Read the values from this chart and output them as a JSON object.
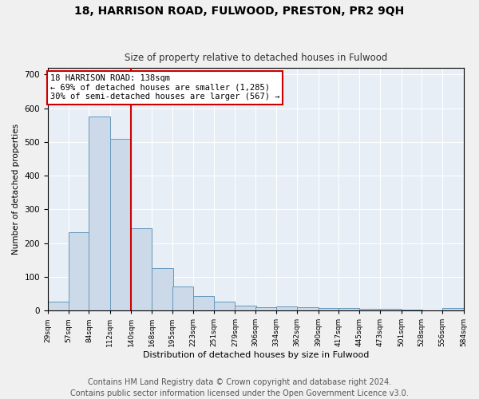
{
  "title": "18, HARRISON ROAD, FULWOOD, PRESTON, PR2 9QH",
  "subtitle": "Size of property relative to detached houses in Fulwood",
  "xlabel": "Distribution of detached houses by size in Fulwood",
  "ylabel": "Number of detached properties",
  "bar_color": "#ccd9e8",
  "bar_edge_color": "#6699bb",
  "background_color": "#e8eef5",
  "grid_color": "#ffffff",
  "vline_x": 140,
  "vline_color": "#cc0000",
  "annotation_text": "18 HARRISON ROAD: 138sqm\n← 69% of detached houses are smaller (1,285)\n30% of semi-detached houses are larger (567) →",
  "annotation_box_color": "#ffffff",
  "annotation_box_edge": "#cc0000",
  "bins_left": [
    29,
    57,
    84,
    112,
    140,
    168,
    195,
    223,
    251,
    279,
    306,
    334,
    362,
    390,
    417,
    445,
    473,
    501,
    528,
    556
  ],
  "bin_width": 28,
  "bar_heights": [
    25,
    233,
    575,
    510,
    245,
    125,
    70,
    42,
    27,
    14,
    10,
    11,
    10,
    8,
    8,
    5,
    5,
    2,
    0,
    7
  ],
  "xlim_left": 29,
  "xlim_right": 584,
  "ylim": [
    0,
    720
  ],
  "yticks": [
    0,
    100,
    200,
    300,
    400,
    500,
    600,
    700
  ],
  "xtick_labels": [
    "29sqm",
    "57sqm",
    "84sqm",
    "112sqm",
    "140sqm",
    "168sqm",
    "195sqm",
    "223sqm",
    "251sqm",
    "279sqm",
    "306sqm",
    "334sqm",
    "362sqm",
    "390sqm",
    "417sqm",
    "445sqm",
    "473sqm",
    "501sqm",
    "528sqm",
    "556sqm",
    "584sqm"
  ],
  "footer_text": "Contains HM Land Registry data © Crown copyright and database right 2024.\nContains public sector information licensed under the Open Government Licence v3.0.",
  "footer_fontsize": 7,
  "fig_bg": "#f0f0f0"
}
